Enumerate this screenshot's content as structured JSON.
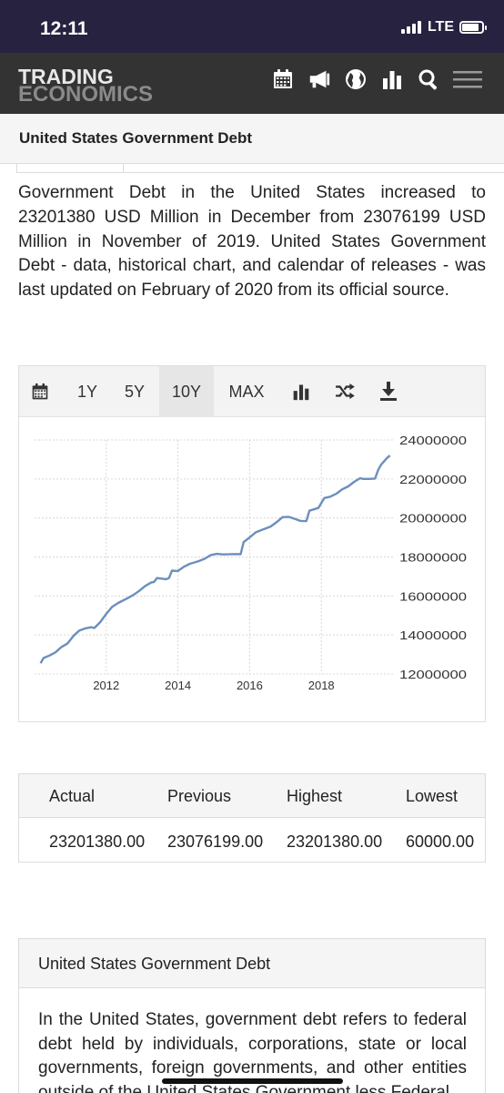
{
  "status_bar": {
    "time": "12:11",
    "network": "LTE"
  },
  "header": {
    "logo_line1": "TRADING",
    "logo_line2": "ECONOMICS",
    "icons": [
      "calendar-icon",
      "megaphone-icon",
      "globe-icon",
      "bar-chart-icon",
      "search-icon",
      "menu-icon"
    ]
  },
  "page": {
    "title": "United States Government Debt",
    "description": "Government Debt in the United States increased to 23201380 USD Million in December from 23076199 USD Million in November of 2019. United States Government Debt - data, historical chart, and calendar of releases - was last updated on February of 2020 from its official source."
  },
  "chart_toolbar": {
    "ranges": [
      "1Y",
      "5Y",
      "10Y",
      "MAX"
    ],
    "selected": "10Y",
    "icons": [
      "calendar-icon",
      "bar-chart-icon",
      "shuffle-icon",
      "download-icon"
    ]
  },
  "chart_data": {
    "type": "line",
    "title": "",
    "xlabel": "",
    "ylabel": "",
    "x_ticks": [
      "2012",
      "2014",
      "2016",
      "2018"
    ],
    "y_ticks": [
      "24000000",
      "22000000",
      "20000000",
      "18000000",
      "16000000",
      "14000000",
      "12000000"
    ],
    "ylim": [
      12000000,
      24000000
    ],
    "grid": true,
    "line_color": "#6b8fbd",
    "series": [
      {
        "name": "",
        "points": [
          [
            "2010-03",
            12550000
          ],
          [
            "2010-04",
            12820000
          ],
          [
            "2010-06",
            12950000
          ],
          [
            "2010-08",
            13110000
          ],
          [
            "2010-10",
            13380000
          ],
          [
            "2010-12",
            13560000
          ],
          [
            "2011-02",
            13950000
          ],
          [
            "2011-04",
            14230000
          ],
          [
            "2011-06",
            14340000
          ],
          [
            "2011-08",
            14400000
          ],
          [
            "2011-09",
            14360000
          ],
          [
            "2011-11",
            14660000
          ],
          [
            "2012-01",
            15080000
          ],
          [
            "2012-03",
            15450000
          ],
          [
            "2012-05",
            15640000
          ],
          [
            "2012-08",
            15880000
          ],
          [
            "2012-10",
            16050000
          ],
          [
            "2012-12",
            16260000
          ],
          [
            "2013-02",
            16510000
          ],
          [
            "2013-04",
            16690000
          ],
          [
            "2013-05",
            16720000
          ],
          [
            "2013-06",
            16920000
          ],
          [
            "2013-09",
            16860000
          ],
          [
            "2013-10",
            16920000
          ],
          [
            "2013-11",
            17300000
          ],
          [
            "2014-01",
            17280000
          ],
          [
            "2014-03",
            17500000
          ],
          [
            "2014-05",
            17650000
          ],
          [
            "2014-08",
            17790000
          ],
          [
            "2014-10",
            17910000
          ],
          [
            "2014-12",
            18100000
          ],
          [
            "2015-02",
            18160000
          ],
          [
            "2015-04",
            18130000
          ],
          [
            "2015-08",
            18150000
          ],
          [
            "2015-10",
            18140000
          ],
          [
            "2015-11",
            18760000
          ],
          [
            "2016-01",
            19000000
          ],
          [
            "2016-03",
            19260000
          ],
          [
            "2016-05",
            19380000
          ],
          [
            "2016-08",
            19560000
          ],
          [
            "2016-10",
            19780000
          ],
          [
            "2016-12",
            20040000
          ],
          [
            "2017-02",
            20060000
          ],
          [
            "2017-04",
            19960000
          ],
          [
            "2017-06",
            19850000
          ],
          [
            "2017-08",
            19840000
          ],
          [
            "2017-09",
            20370000
          ],
          [
            "2017-12",
            20510000
          ],
          [
            "2018-02",
            21020000
          ],
          [
            "2018-04",
            21090000
          ],
          [
            "2018-06",
            21240000
          ],
          [
            "2018-08",
            21470000
          ],
          [
            "2018-10",
            21620000
          ],
          [
            "2018-12",
            21850000
          ],
          [
            "2019-02",
            22040000
          ],
          [
            "2019-03",
            22000000
          ],
          [
            "2019-05",
            22000000
          ],
          [
            "2019-07",
            22020000
          ],
          [
            "2019-08",
            22450000
          ],
          [
            "2019-09",
            22730000
          ],
          [
            "2019-11",
            23076199
          ],
          [
            "2019-12",
            23201380
          ]
        ]
      }
    ]
  },
  "summary": {
    "headers": [
      "Actual",
      "Previous",
      "Highest",
      "Lowest"
    ],
    "values": [
      "23201380.00",
      "23076199.00",
      "23201380.00",
      "60000.00"
    ]
  },
  "info_card": {
    "title": "United States Government Debt",
    "body": "In the United States, government debt refers to federal debt held by individuals, corporations, state or local governments, foreign governments, and other entities outside of the United States Government less Federal"
  }
}
